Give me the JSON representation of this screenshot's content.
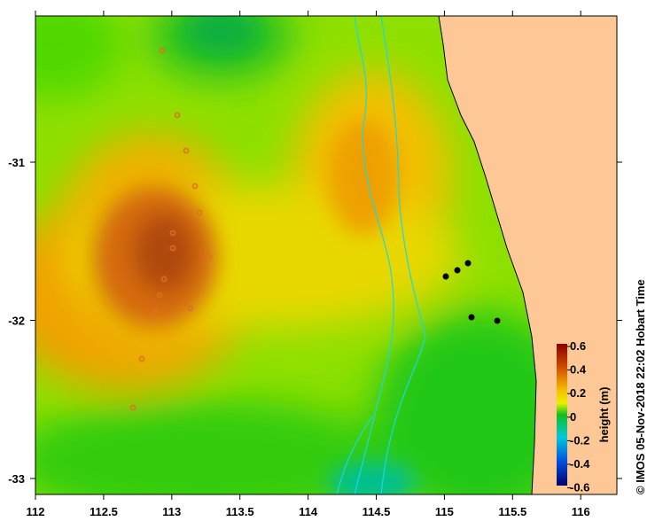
{
  "map": {
    "x_ticks": [
      "112",
      "112.5",
      "113",
      "113.5",
      "114",
      "114.5",
      "115",
      "115.5",
      "116"
    ],
    "y_ticks": [
      "-31",
      "-32",
      "-33"
    ],
    "colorbar": {
      "label": "height (m)",
      "ticks": [
        "0.6",
        "0.4",
        "0.2",
        "0",
        "-0.2",
        "-0.4",
        "-0.6"
      ],
      "range": [
        -0.6,
        0.6
      ]
    },
    "credit": "© IMOS 05-Nov-2018 22:02 Hobart Time",
    "colors": {
      "land": "#fdc896",
      "high": "#c0500a",
      "mid": "#f7e000",
      "low": "#00c020",
      "contour": "#19d8e8"
    }
  }
}
